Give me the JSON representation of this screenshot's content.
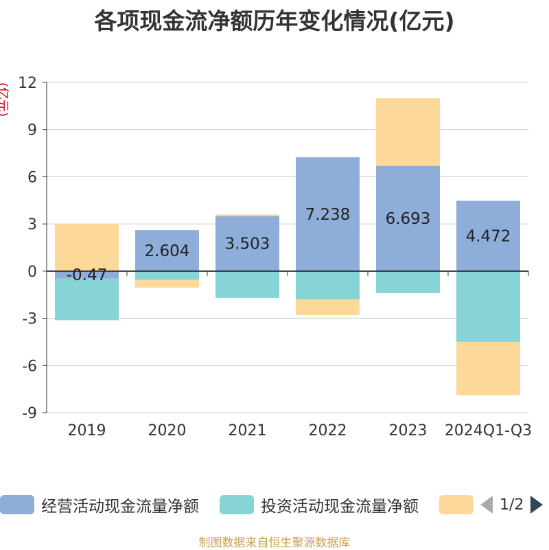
{
  "title": "各项现金流净额历年变化情况(亿元)",
  "unit_label": "(亿元)",
  "source": "制图数据来自恒生聚源数据库",
  "legend": {
    "items": [
      {
        "label": "经营活动现金流量净额",
        "color": "#8eaed9"
      },
      {
        "label": "投资活动现金流量净额",
        "color": "#86d4d6"
      },
      {
        "label": "",
        "color": "#fdd999"
      }
    ],
    "page": "1/2"
  },
  "chart_data": {
    "type": "bar",
    "stacked": true,
    "categories": [
      "2019",
      "2020",
      "2021",
      "2022",
      "2023",
      "2024Q1-Q3"
    ],
    "y_ticks": [
      12,
      9,
      6,
      3,
      0,
      -3,
      -6,
      -9
    ],
    "ylim": [
      -9,
      12
    ],
    "grid": true,
    "series": [
      {
        "name": "经营活动现金流量净额",
        "color": "#8eaed9",
        "values": [
          -0.47,
          2.604,
          3.503,
          7.238,
          6.693,
          4.472
        ],
        "labels": [
          "-0.47",
          "2.604",
          "3.503",
          "7.238",
          "6.693",
          "4.472"
        ]
      },
      {
        "name": "投资活动现金流量净额",
        "color": "#86d4d6",
        "values": [
          -2.65,
          -0.55,
          -1.7,
          -1.8,
          -1.4,
          -4.5
        ]
      },
      {
        "name": "",
        "color": "#fdd999",
        "values": [
          3.0,
          -0.5,
          0.1,
          -1.0,
          4.3,
          -3.4
        ]
      }
    ]
  }
}
